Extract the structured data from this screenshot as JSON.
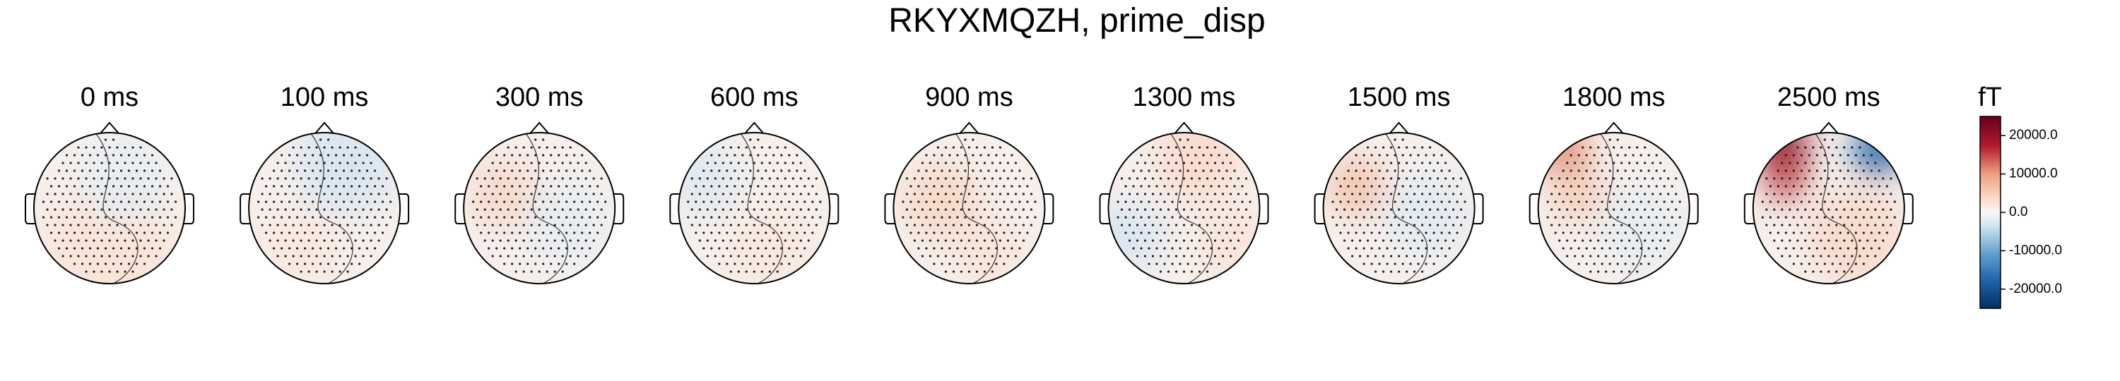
{
  "chart_data": {
    "type": "topomap",
    "title": "RKYXMQZH, prime_disp",
    "panels": [
      "0 ms",
      "100 ms",
      "300 ms",
      "600 ms",
      "900 ms",
      "1300 ms",
      "1500 ms",
      "1800 ms",
      "2500 ms"
    ],
    "colorbar_label": "fT",
    "clim": [
      -25000,
      25000
    ],
    "cticks": [
      {
        "value": 20000,
        "label": "20000.0"
      },
      {
        "value": 10000,
        "label": "10000.0"
      },
      {
        "value": 0,
        "label": "0.0"
      },
      {
        "value": -10000,
        "label": "-10000.0"
      },
      {
        "value": -20000,
        "label": "-20000.0"
      }
    ]
  }
}
